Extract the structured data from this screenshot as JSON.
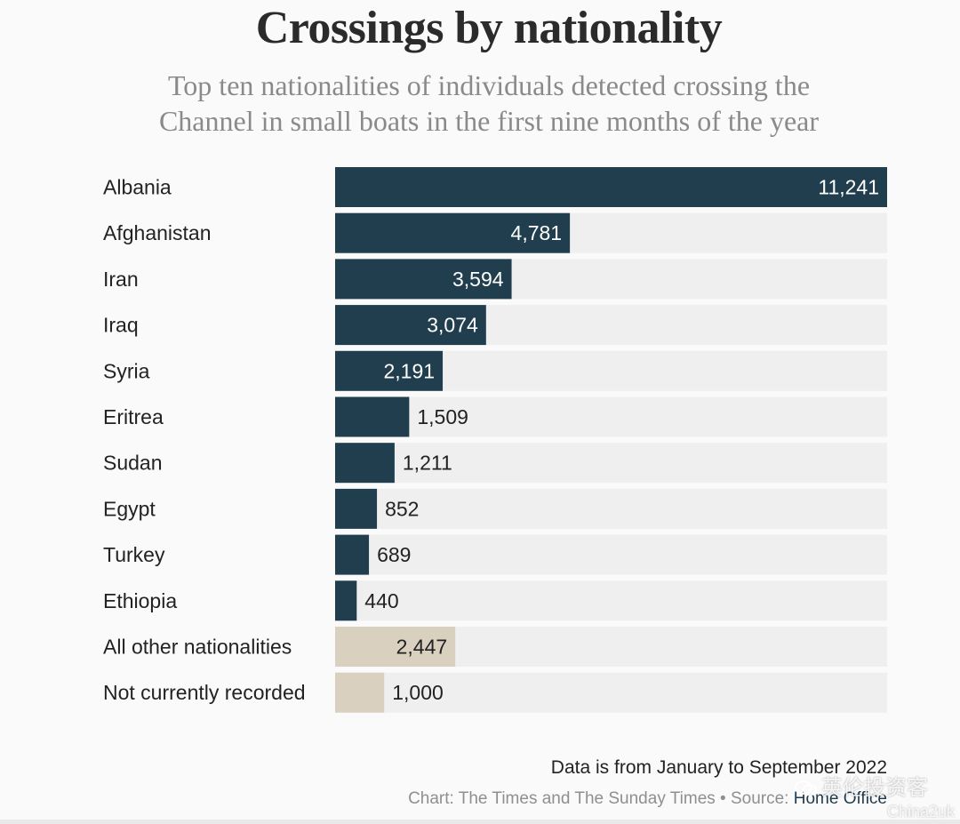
{
  "chart_data": {
    "type": "bar",
    "orientation": "horizontal",
    "title": "Crossings by nationality",
    "subtitle_line1": "Top ten nationalities of individuals detected crossing the",
    "subtitle_line2": "Channel in small boats in the first nine months of the year",
    "categories": [
      "Albania",
      "Afghanistan",
      "Iran",
      "Iraq",
      "Syria",
      "Eritrea",
      "Sudan",
      "Egypt",
      "Turkey",
      "Ethiopia",
      "All other nationalities",
      "Not currently recorded"
    ],
    "values": [
      11241,
      4781,
      3594,
      3074,
      2191,
      1509,
      1211,
      852,
      689,
      440,
      2447,
      1000
    ],
    "value_labels": [
      "11,241",
      "4,781",
      "3,594",
      "3,074",
      "2,191",
      "1,509",
      "1,211",
      "852",
      "689",
      "440",
      "2,447",
      "1,000"
    ],
    "xlim": [
      0,
      11241
    ],
    "colors": {
      "primary": "#213e4e",
      "secondary": "#d9d0bf",
      "track": "#efefef"
    },
    "grid": false,
    "legend": "none"
  },
  "footer": {
    "note": "Data is from January to September 2022",
    "credit_prefix": "Chart: The Times and The Sunday Times • Source: ",
    "credit_source": "Home Office"
  },
  "watermark": {
    "line1": "英伦投资客",
    "line2": "China2uk"
  }
}
